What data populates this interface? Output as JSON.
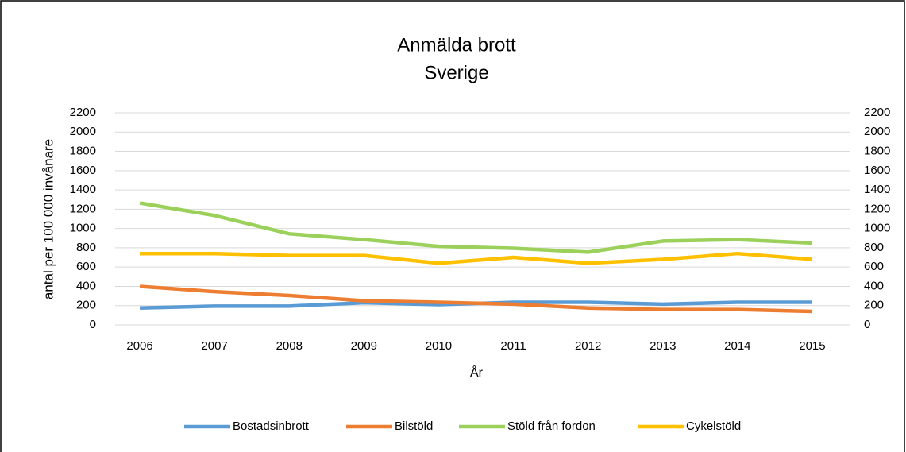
{
  "chart_data": {
    "type": "line",
    "title": "Anmälda brott",
    "subtitle": "Sverige",
    "x_label": "År",
    "y_label": "antal per 100 000 invånare",
    "categories": [
      "2006",
      "2007",
      "2008",
      "2009",
      "2010",
      "2011",
      "2012",
      "2013",
      "2014",
      "2015"
    ],
    "series": [
      {
        "name": "Bostadsinbrott",
        "color": "#5b9bd5",
        "values": [
          175,
          195,
          195,
          230,
          210,
          235,
          235,
          215,
          235,
          235
        ]
      },
      {
        "name": "Bilstöld",
        "color": "#ed7d31",
        "values": [
          400,
          345,
          305,
          250,
          235,
          215,
          175,
          160,
          160,
          140
        ]
      },
      {
        "name": "Stöld från fordon",
        "color": "#9bd05a",
        "values": [
          1265,
          1135,
          945,
          885,
          815,
          795,
          755,
          870,
          885,
          850
        ]
      },
      {
        "name": "Cykelstöld",
        "color": "#ffc000",
        "values": [
          740,
          740,
          720,
          720,
          640,
          700,
          640,
          680,
          740,
          680
        ]
      }
    ],
    "ylim": [
      0,
      2200
    ],
    "yticks": [
      0,
      200,
      400,
      600,
      800,
      1000,
      1200,
      1400,
      1600,
      1800,
      2000,
      2200
    ],
    "y2lim": [
      0,
      2200
    ],
    "y2ticks": [
      0,
      200,
      400,
      600,
      800,
      1000,
      1200,
      1400,
      1600,
      1800,
      2000,
      2200
    ],
    "grid": true,
    "legend": "bottom"
  }
}
